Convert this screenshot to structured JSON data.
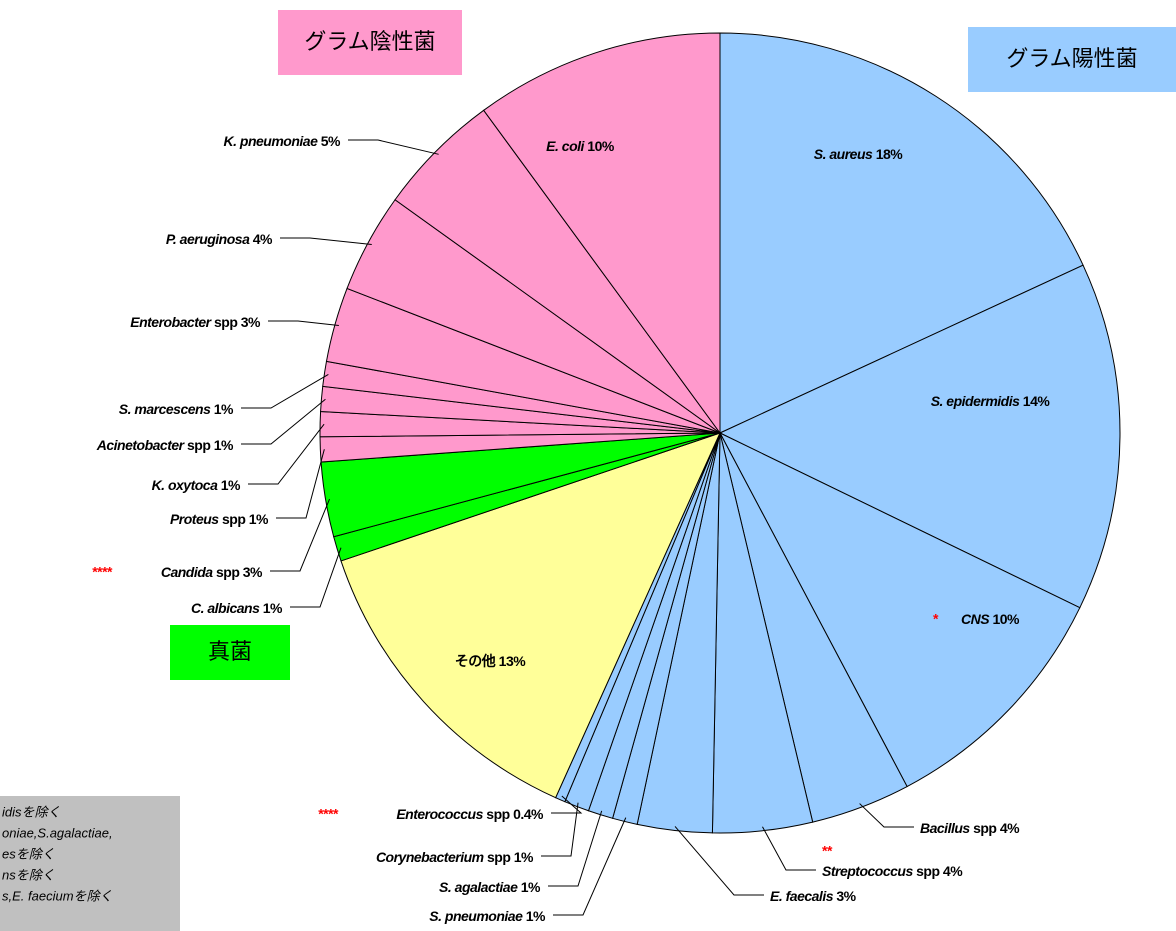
{
  "chart_data": {
    "type": "pie",
    "categories": [
      "S. aureus",
      "S. epidermidis",
      "CNS",
      "Bacillus spp",
      "Streptococcus spp",
      "E. faecalis",
      "S. pneumoniae",
      "S. agalactiae",
      "Corynebacterium spp",
      "Enterococcus spp",
      "その他",
      "C. albicans",
      "Candida spp",
      "Proteus spp",
      "K. oxytoca",
      "Acinetobacter spp",
      "S. marcescens",
      "Enterobacter spp",
      "P. aeruginosa",
      "K. pneumoniae",
      "E. coli"
    ],
    "values": [
      18,
      14,
      10,
      4,
      4,
      3,
      1,
      1,
      1,
      0.4,
      13,
      1,
      3,
      1,
      1,
      1,
      1,
      3,
      4,
      5,
      10
    ],
    "value_labels": [
      "18%",
      "14%",
      "10%",
      "4%",
      "4%",
      "3%",
      "1%",
      "1%",
      "1%",
      "0.4%",
      "13%",
      "1%",
      "3%",
      "1%",
      "1%",
      "1%",
      "1%",
      "3%",
      "4%",
      "5%",
      "10%"
    ],
    "colors": [
      "#99ccff",
      "#99ccff",
      "#99ccff",
      "#99ccff",
      "#99ccff",
      "#99ccff",
      "#99ccff",
      "#99ccff",
      "#99ccff",
      "#99ccff",
      "#ffff99",
      "#00ff00",
      "#00ff00",
      "#ff99cc",
      "#ff99cc",
      "#ff99cc",
      "#ff99cc",
      "#ff99cc",
      "#ff99cc",
      "#ff99cc",
      "#ff99cc"
    ],
    "footnote_marks": [
      {
        "index": 2,
        "text": "*"
      },
      {
        "index": 4,
        "text": "**"
      },
      {
        "index": 9,
        "text": "****"
      },
      {
        "index": 12,
        "text": "****"
      }
    ],
    "groups": [
      "グラム陰性菌",
      "グラム陽性菌",
      "真菌"
    ],
    "footnotes": [
      "idisを除く",
      "oniae,S.agalactiae,",
      "esを除く",
      "nsを除く",
      "s,E. faeciumを除く"
    ]
  }
}
